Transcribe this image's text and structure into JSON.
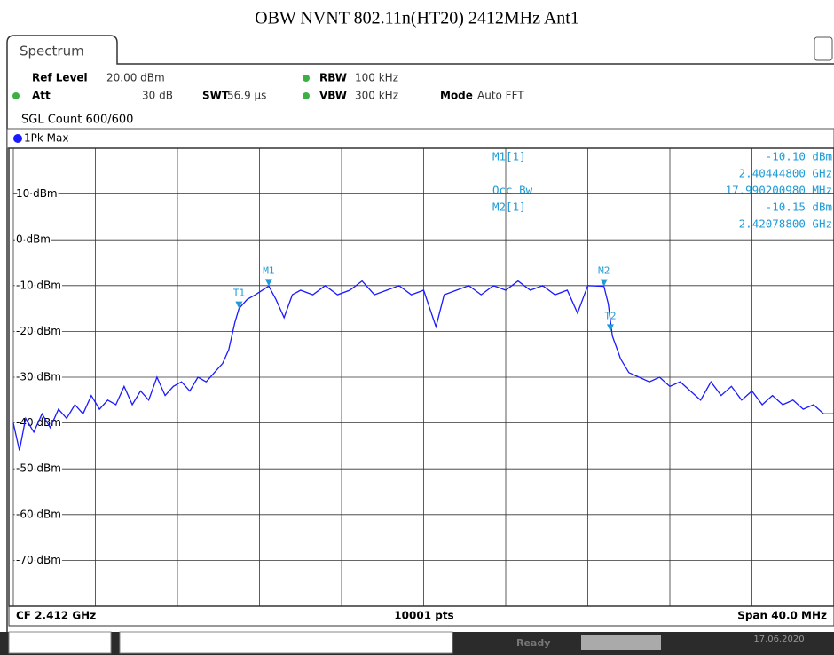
{
  "title": "OBW NVNT 802.11n(HT20) 2412MHz Ant1",
  "tab": "Spectrum",
  "settings": [
    {
      "label": "Ref Level",
      "value": "20.00 dBm"
    },
    {
      "label": "Att",
      "value": "30 dB"
    },
    {
      "label": "SWT",
      "value": "56.9 µs"
    },
    {
      "label": "RBW",
      "value": "100 kHz"
    },
    {
      "label": "VBW",
      "value": "300 kHz"
    },
    {
      "label": "Mode",
      "value": "Auto FFT"
    }
  ],
  "sgl_count": "SGL Count 600/600",
  "footer": {
    "left": "CF 2.412 GHz",
    "center": "10001 pts",
    "right": "Span 40.0 MHz"
  },
  "status": {
    "state": "Ready",
    "date": "17.06.2020"
  },
  "readout": [
    {
      "name": "M1[1]",
      "value": "-10.10 dBm"
    },
    {
      "name": "",
      "value": "2.40444800 GHz"
    },
    {
      "name": "Occ Bw",
      "value": "17.990200980 MHz"
    },
    {
      "name": "M2[1]",
      "value": "-10.15 dBm"
    },
    {
      "name": "",
      "value": "2.42078800 GHz"
    }
  ],
  "chart_data": {
    "type": "line",
    "xlim": [
      2392,
      2432
    ],
    "xticks": [
      2392,
      2396,
      2400,
      2404,
      2408,
      2412,
      2416,
      2420,
      2424,
      2428,
      2432
    ],
    "ylim": [
      -80,
      20
    ],
    "yticks": [
      {
        "value": 10,
        "label": "10 dBm"
      },
      {
        "value": 0,
        "label": "0 dBm"
      },
      {
        "value": -10,
        "label": "-10 dBm"
      },
      {
        "value": -20,
        "label": "-20 dBm"
      },
      {
        "value": -30,
        "label": "-30 dBm"
      },
      {
        "value": -40,
        "label": "-40 dBm"
      },
      {
        "value": -50,
        "label": "-50 dBm"
      },
      {
        "value": -60,
        "label": "-60 dBm"
      },
      {
        "value": -70,
        "label": "-70 dBm"
      }
    ],
    "grid": true,
    "series": [
      {
        "name": "1Pk Max",
        "color": "#1a1aff",
        "x": [
          2392,
          2392.3,
          2392.6,
          2393,
          2393.4,
          2393.8,
          2394.2,
          2394.6,
          2395,
          2395.4,
          2395.8,
          2396.2,
          2396.6,
          2397,
          2397.4,
          2397.8,
          2398.2,
          2398.6,
          2399,
          2399.4,
          2399.8,
          2400.2,
          2400.6,
          2401,
          2401.4,
          2401.8,
          2402.2,
          2402.5,
          2402.8,
          2403,
          2403.4,
          2403.8,
          2404.448,
          2404.8,
          2405.2,
          2405.6,
          2406,
          2406.6,
          2407.2,
          2407.8,
          2408.4,
          2409,
          2409.6,
          2410.2,
          2410.8,
          2411.4,
          2412,
          2412.6,
          2413,
          2413.6,
          2414.2,
          2414.8,
          2415.4,
          2416,
          2416.6,
          2417.2,
          2417.8,
          2418.4,
          2419,
          2419.5,
          2420,
          2420.788,
          2421,
          2421.2,
          2421.6,
          2422,
          2422.5,
          2423,
          2423.5,
          2424,
          2424.5,
          2425,
          2425.5,
          2426,
          2426.5,
          2427,
          2427.5,
          2428,
          2428.5,
          2429,
          2429.5,
          2430,
          2430.5,
          2431,
          2431.5,
          2432
        ],
        "values": [
          -40,
          -46,
          -39,
          -42,
          -38,
          -41,
          -37,
          -39,
          -36,
          -38,
          -34,
          -37,
          -35,
          -36,
          -32,
          -36,
          -33,
          -35,
          -30,
          -34,
          -32,
          -31,
          -33,
          -30,
          -31,
          -29,
          -27,
          -24,
          -18,
          -15,
          -13,
          -12,
          -10.1,
          -13,
          -17,
          -12,
          -11,
          -12,
          -10,
          -12,
          -11,
          -9,
          -12,
          -11,
          -10,
          -12,
          -11,
          -19,
          -12,
          -11,
          -10,
          -12,
          -10,
          -11,
          -9,
          -11,
          -10,
          -12,
          -11,
          -16,
          -10,
          -10.15,
          -14,
          -21,
          -26,
          -29,
          -30,
          -31,
          -30,
          -32,
          -31,
          -33,
          -35,
          -31,
          -34,
          -32,
          -35,
          -33,
          -36,
          -34,
          -36,
          -35,
          -37,
          -36,
          -38,
          -38
        ]
      }
    ],
    "markers": [
      {
        "name": "M1",
        "x": 2404.448,
        "y": -10.1
      },
      {
        "name": "M2",
        "x": 2420.788,
        "y": -10.15
      },
      {
        "name": "T1",
        "x": 2403.0,
        "y": -15
      },
      {
        "name": "T2",
        "x": 2421.1,
        "y": -20
      }
    ]
  }
}
